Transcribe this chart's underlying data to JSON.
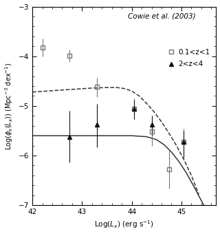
{
  "xlim": [
    42,
    45.7
  ],
  "ylim": [
    -7,
    -3
  ],
  "legend_title": "Cowie et al. (2003)",
  "sq_label": "0.1<z<1",
  "tri_label": "2<z<4",
  "sq_x": [
    42.2,
    42.75,
    43.3,
    44.05,
    44.4,
    44.75,
    45.05
  ],
  "sq_y": [
    -3.82,
    -3.99,
    -4.62,
    -5.05,
    -5.52,
    -6.28,
    -5.72
  ],
  "sq_yerr_lo": [
    0.18,
    0.12,
    0.2,
    0.22,
    0.28,
    0.38,
    0.28
  ],
  "sq_yerr_hi": [
    0.18,
    0.12,
    0.18,
    0.2,
    0.28,
    0.38,
    0.26
  ],
  "tri_x": [
    42.75,
    43.3,
    44.05,
    44.4,
    45.05
  ],
  "tri_y": [
    -5.62,
    -5.38,
    -5.05,
    -5.38,
    -5.72
  ],
  "tri_yerr_lo": [
    0.52,
    0.45,
    0.22,
    0.22,
    0.32
  ],
  "tri_yerr_hi": [
    0.52,
    0.42,
    0.18,
    0.18,
    0.22
  ],
  "dashed_x": [
    42.0,
    42.3,
    42.6,
    42.9,
    43.2,
    43.5,
    43.7,
    43.85,
    44.0,
    44.15,
    44.3,
    44.45,
    44.6,
    44.75,
    44.9,
    45.05,
    45.2,
    45.35
  ],
  "dashed_y": [
    -4.72,
    -4.7,
    -4.68,
    -4.66,
    -4.64,
    -4.63,
    -4.63,
    -4.65,
    -4.7,
    -4.8,
    -4.95,
    -5.12,
    -5.32,
    -5.55,
    -5.8,
    -6.08,
    -6.4,
    -6.78
  ],
  "solid_x": [
    42.0,
    42.5,
    43.0,
    43.5,
    44.0,
    44.3,
    44.5,
    44.65,
    44.8,
    44.95,
    45.1,
    45.25,
    45.45
  ],
  "solid_y": [
    -5.6,
    -5.6,
    -5.6,
    -5.6,
    -5.6,
    -5.62,
    -5.68,
    -5.78,
    -5.93,
    -6.12,
    -6.35,
    -6.62,
    -7.0
  ],
  "line_color": "#333333",
  "data_color_sq": "#777777",
  "data_color_tri": "#111111",
  "bg_color": "#ffffff"
}
